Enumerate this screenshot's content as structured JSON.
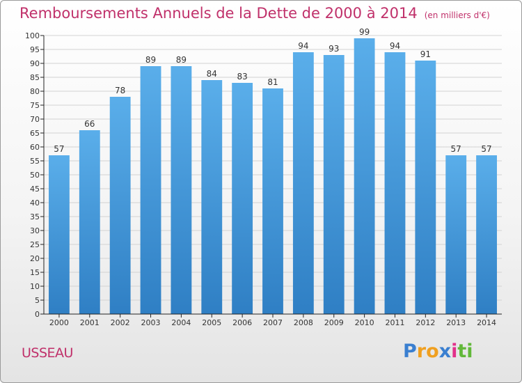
{
  "header": {
    "title": "Remboursements Annuels de la Dette de 2000 à 2014",
    "unit": "(en milliers d'€)"
  },
  "footer": {
    "commune": "USSEAU",
    "logo_text": "Proxiti"
  },
  "colors": {
    "title": "#c0306a",
    "bar_top": "#5aaeea",
    "bar_bottom": "#2f7fc4",
    "grid": "#d2d2d2",
    "axis": "#222222",
    "label": "#333333"
  },
  "chart_data": {
    "type": "bar",
    "title": "Remboursements Annuels de la Dette de 2000 à 2014",
    "subtitle": "(en milliers d'€)",
    "xlabel": "",
    "ylabel": "",
    "categories": [
      "2000",
      "2001",
      "2002",
      "2003",
      "2004",
      "2005",
      "2006",
      "2007",
      "2008",
      "2009",
      "2010",
      "2011",
      "2012",
      "2013",
      "2014"
    ],
    "values": [
      57,
      66,
      78,
      89,
      89,
      84,
      83,
      81,
      94,
      93,
      99,
      94,
      91,
      57,
      57
    ],
    "ylim": [
      0,
      100
    ],
    "ytick_step": 5,
    "grid": true,
    "data_labels": true,
    "legend": "none"
  }
}
